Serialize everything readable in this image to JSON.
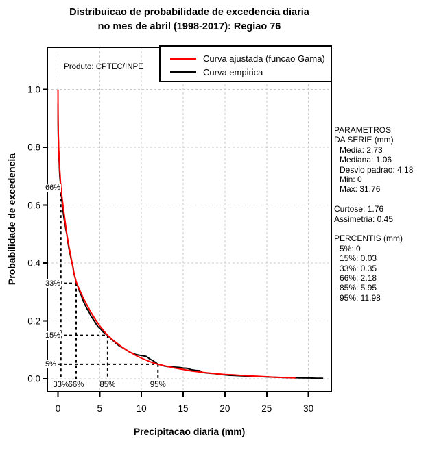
{
  "title": {
    "line1": "Distribuicao de probabilidade de excedencia diaria",
    "line2": "no mes de abril (1998-2017): Regiao 76"
  },
  "watermark": "Produto: CPTEC/INPE",
  "legend": {
    "items": [
      {
        "label": "Curva ajustada (funcao Gama)",
        "color": "#ff0000"
      },
      {
        "label": "Curva empirica",
        "color": "#000000"
      }
    ]
  },
  "stats_panel": {
    "header_line1": "PARAMETROS",
    "header_line2": "DA SERIE (mm)",
    "series_stats": [
      "Media: 2.73",
      "Mediana: 1.06",
      "Desvio padrao: 4.18",
      "Min: 0",
      "Max: 31.76"
    ],
    "moments": [
      "Curtose: 1.76",
      "Assimetria: 0.45"
    ],
    "percentis_header": "PERCENTIS (mm)",
    "percentis": [
      "5%: 0",
      "15%: 0.03",
      "33%: 0.35",
      "66%: 2.18",
      "85%: 5.95",
      "95%: 11.98"
    ]
  },
  "colors": {
    "fitted_curve": "#ff0000",
    "empirical_curve": "#000000",
    "grid": "#c8c8c8",
    "axis": "#000000"
  },
  "chart_data": {
    "type": "line",
    "title": "Distribuicao de probabilidade de excedencia diaria no mes de abril (1998-2017): Regiao 76",
    "xlabel": "Precipitacao diaria (mm)",
    "ylabel": "Probabilidade de excedencia",
    "xlim": [
      -1.27,
      32.74
    ],
    "ylim": [
      -0.045,
      1.146
    ],
    "x_ticks": [
      0,
      5,
      10,
      15,
      20,
      25,
      30
    ],
    "y_ticks": [
      0.0,
      0.2,
      0.4,
      0.6,
      0.8,
      1.0
    ],
    "y_tick_labels": [
      "0.0",
      "0.2",
      "0.4",
      "0.6",
      "0.8",
      "1.0"
    ],
    "grid": true,
    "legend_position": "top-right",
    "percentile_guides": [
      {
        "prob": 0.66,
        "prob_label": "66%",
        "x": 0.35,
        "x_label": "33%"
      },
      {
        "prob": 0.33,
        "prob_label": "33%",
        "x": 2.18,
        "x_label": "66%"
      },
      {
        "prob": 0.15,
        "prob_label": "15%",
        "x": 5.95,
        "x_label": "85%"
      },
      {
        "prob": 0.05,
        "prob_label": "5%",
        "x": 11.98,
        "x_label": "95%"
      }
    ],
    "series": [
      {
        "name": "Curva empirica",
        "color": "#000000",
        "points": [
          [
            0,
            0.955
          ],
          [
            0.01,
            0.9
          ],
          [
            0.03,
            0.85
          ],
          [
            0.06,
            0.81
          ],
          [
            0.1,
            0.78
          ],
          [
            0.14,
            0.75
          ],
          [
            0.18,
            0.72
          ],
          [
            0.22,
            0.7
          ],
          [
            0.27,
            0.685
          ],
          [
            0.32,
            0.665
          ],
          [
            0.35,
            0.66
          ],
          [
            0.4,
            0.64
          ],
          [
            0.48,
            0.615
          ],
          [
            0.56,
            0.595
          ],
          [
            0.65,
            0.57
          ],
          [
            0.75,
            0.55
          ],
          [
            0.85,
            0.535
          ],
          [
            0.95,
            0.515
          ],
          [
            1.06,
            0.5
          ],
          [
            1.2,
            0.47
          ],
          [
            1.35,
            0.445
          ],
          [
            1.5,
            0.425
          ],
          [
            1.65,
            0.405
          ],
          [
            1.8,
            0.385
          ],
          [
            1.95,
            0.36
          ],
          [
            2.18,
            0.335
          ],
          [
            2.4,
            0.318
          ],
          [
            2.6,
            0.3
          ],
          [
            2.8,
            0.288
          ],
          [
            3.0,
            0.27
          ],
          [
            3.2,
            0.258
          ],
          [
            3.45,
            0.243
          ],
          [
            3.7,
            0.232
          ],
          [
            3.9,
            0.22
          ],
          [
            4.1,
            0.21
          ],
          [
            4.35,
            0.2
          ],
          [
            4.6,
            0.188
          ],
          [
            4.85,
            0.178
          ],
          [
            5.1,
            0.172
          ],
          [
            5.4,
            0.162
          ],
          [
            5.7,
            0.155
          ],
          [
            5.95,
            0.15
          ],
          [
            6.2,
            0.142
          ],
          [
            6.5,
            0.134
          ],
          [
            6.8,
            0.127
          ],
          [
            7.1,
            0.119
          ],
          [
            7.4,
            0.112
          ],
          [
            7.7,
            0.108
          ],
          [
            8.0,
            0.103
          ],
          [
            8.3,
            0.097
          ],
          [
            8.6,
            0.092
          ],
          [
            9.0,
            0.087
          ],
          [
            9.4,
            0.083
          ],
          [
            9.8,
            0.081
          ],
          [
            10.2,
            0.079
          ],
          [
            10.6,
            0.077
          ],
          [
            11.0,
            0.068
          ],
          [
            11.4,
            0.062
          ],
          [
            11.7,
            0.056
          ],
          [
            11.98,
            0.05
          ],
          [
            12.3,
            0.048
          ],
          [
            12.7,
            0.044
          ],
          [
            13.1,
            0.042
          ],
          [
            13.5,
            0.041
          ],
          [
            14.0,
            0.04
          ],
          [
            14.5,
            0.039
          ],
          [
            15.0,
            0.037
          ],
          [
            15.5,
            0.036
          ],
          [
            16.0,
            0.031
          ],
          [
            16.5,
            0.029
          ],
          [
            17.0,
            0.028
          ],
          [
            17.3,
            0.022
          ],
          [
            17.8,
            0.02
          ],
          [
            18.2,
            0.019
          ],
          [
            18.7,
            0.018
          ],
          [
            19.2,
            0.016
          ],
          [
            19.8,
            0.014
          ],
          [
            20.5,
            0.012
          ],
          [
            21.2,
            0.011
          ],
          [
            22.0,
            0.01
          ],
          [
            22.8,
            0.009
          ],
          [
            23.6,
            0.008
          ],
          [
            24.5,
            0.007
          ],
          [
            25.4,
            0.006
          ],
          [
            26.3,
            0.005
          ],
          [
            27.2,
            0.004
          ],
          [
            28.2,
            0.0035
          ],
          [
            29.2,
            0.003
          ],
          [
            30.2,
            0.0025
          ],
          [
            31.0,
            0.002
          ],
          [
            31.76,
            0.002
          ]
        ]
      },
      {
        "name": "Curva ajustada (funcao Gama)",
        "color": "#ff0000",
        "points": [
          [
            0,
            1.0
          ],
          [
            0.02,
            0.89
          ],
          [
            0.05,
            0.84
          ],
          [
            0.1,
            0.79
          ],
          [
            0.15,
            0.757
          ],
          [
            0.2,
            0.73
          ],
          [
            0.27,
            0.7
          ],
          [
            0.35,
            0.66
          ],
          [
            0.5,
            0.625
          ],
          [
            0.7,
            0.577
          ],
          [
            0.9,
            0.536
          ],
          [
            1.06,
            0.5
          ],
          [
            1.3,
            0.46
          ],
          [
            1.6,
            0.415
          ],
          [
            1.9,
            0.368
          ],
          [
            2.18,
            0.335
          ],
          [
            2.5,
            0.313
          ],
          [
            3.0,
            0.281
          ],
          [
            3.5,
            0.253
          ],
          [
            4.0,
            0.227
          ],
          [
            4.5,
            0.204
          ],
          [
            5.0,
            0.183
          ],
          [
            5.5,
            0.165
          ],
          [
            5.95,
            0.15
          ],
          [
            6.5,
            0.136
          ],
          [
            7.0,
            0.124
          ],
          [
            7.5,
            0.113
          ],
          [
            8.0,
            0.103
          ],
          [
            8.5,
            0.094
          ],
          [
            9.0,
            0.086
          ],
          [
            9.5,
            0.078
          ],
          [
            10.0,
            0.071
          ],
          [
            10.5,
            0.065
          ],
          [
            11.0,
            0.059
          ],
          [
            11.5,
            0.054
          ],
          [
            11.98,
            0.05
          ],
          [
            13.0,
            0.043
          ],
          [
            14.0,
            0.037
          ],
          [
            15.0,
            0.032
          ],
          [
            16.0,
            0.027
          ],
          [
            17.0,
            0.0235
          ],
          [
            18.0,
            0.02
          ],
          [
            19.0,
            0.0175
          ],
          [
            20.0,
            0.015
          ],
          [
            21.0,
            0.0135
          ],
          [
            22.0,
            0.0115
          ],
          [
            23.0,
            0.01
          ],
          [
            24.0,
            0.0085
          ],
          [
            25.0,
            0.007
          ],
          [
            26.0,
            0.0055
          ],
          [
            27.0,
            0.0045
          ],
          [
            28.0,
            0.0035
          ],
          [
            28.5,
            0.003
          ]
        ]
      }
    ]
  }
}
